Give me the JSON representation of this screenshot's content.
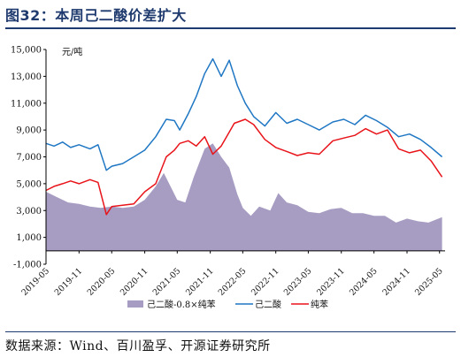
{
  "title": "图32：本周己二酸价差扩大",
  "source": "数据来源：Wind、百川盈孚、开源证券研究所",
  "chart_data": {
    "type": "line",
    "unit_label": "元/吨",
    "ylim": [
      -1000,
      15000
    ],
    "yticks": [
      "-1,000",
      "1,000",
      "3,000",
      "5,000",
      "7,000",
      "9,000",
      "11,000",
      "13,000",
      "15,000"
    ],
    "xticks": [
      "2019-05",
      "2019-11",
      "2020-05",
      "2020-11",
      "2021-05",
      "2021-11",
      "2022-05",
      "2022-11",
      "2023-05",
      "2023-11",
      "2024-05",
      "2024-11",
      "2025-05"
    ],
    "legend": [
      "己二酸-0.8×纯苯",
      "己二酸",
      "纯苯"
    ],
    "legend_position": "bottom",
    "colors": {
      "spread": "#a79cc2",
      "adipic": "#1f77c4",
      "benzene": "#e8141a"
    },
    "series": [
      {
        "name": "己二酸-0.8×纯苯",
        "style": "area",
        "points": [
          [
            "2019-05-01",
            4400
          ],
          [
            "2019-07-01",
            4000
          ],
          [
            "2019-09-01",
            3600
          ],
          [
            "2019-11-01",
            3500
          ],
          [
            "2020-01-01",
            3300
          ],
          [
            "2020-03-01",
            3200
          ],
          [
            "2020-05-01",
            3300
          ],
          [
            "2020-07-01",
            3200
          ],
          [
            "2020-09-01",
            3300
          ],
          [
            "2020-11-01",
            3800
          ],
          [
            "2021-01-01",
            4800
          ],
          [
            "2021-02-15",
            5800
          ],
          [
            "2021-04-01",
            4600
          ],
          [
            "2021-05-01",
            3800
          ],
          [
            "2021-06-15",
            3600
          ],
          [
            "2021-08-01",
            5500
          ],
          [
            "2021-10-01",
            7600
          ],
          [
            "2021-11-15",
            8000
          ],
          [
            "2022-01-01",
            7000
          ],
          [
            "2022-02-15",
            6200
          ],
          [
            "2022-04-01",
            4200
          ],
          [
            "2022-05-01",
            3200
          ],
          [
            "2022-06-15",
            2600
          ],
          [
            "2022-08-01",
            3300
          ],
          [
            "2022-10-01",
            3000
          ],
          [
            "2022-11-15",
            4300
          ],
          [
            "2023-01-01",
            3600
          ],
          [
            "2023-03-01",
            3400
          ],
          [
            "2023-05-01",
            2900
          ],
          [
            "2023-07-01",
            2800
          ],
          [
            "2023-09-01",
            3100
          ],
          [
            "2023-11-01",
            3200
          ],
          [
            "2024-01-01",
            2800
          ],
          [
            "2024-03-01",
            2800
          ],
          [
            "2024-05-01",
            2600
          ],
          [
            "2024-07-01",
            2600
          ],
          [
            "2024-09-01",
            2100
          ],
          [
            "2024-11-01",
            2400
          ],
          [
            "2025-01-01",
            2200
          ],
          [
            "2025-03-01",
            2100
          ],
          [
            "2025-05-15",
            2500
          ]
        ]
      },
      {
        "name": "己二酸",
        "style": "line",
        "points": [
          [
            "2019-05-01",
            8000
          ],
          [
            "2019-06-15",
            7800
          ],
          [
            "2019-08-01",
            8100
          ],
          [
            "2019-09-15",
            7700
          ],
          [
            "2019-11-01",
            7900
          ],
          [
            "2020-01-01",
            7600
          ],
          [
            "2020-02-15",
            7900
          ],
          [
            "2020-04-01",
            6000
          ],
          [
            "2020-05-01",
            6300
          ],
          [
            "2020-07-01",
            6500
          ],
          [
            "2020-09-01",
            7000
          ],
          [
            "2020-11-01",
            7500
          ],
          [
            "2021-01-01",
            8500
          ],
          [
            "2021-03-01",
            9800
          ],
          [
            "2021-04-15",
            9700
          ],
          [
            "2021-05-15",
            9000
          ],
          [
            "2021-07-01",
            10200
          ],
          [
            "2021-08-15",
            11500
          ],
          [
            "2021-10-01",
            13200
          ],
          [
            "2021-11-15",
            14300
          ],
          [
            "2022-01-01",
            13000
          ],
          [
            "2022-02-15",
            14200
          ],
          [
            "2022-04-01",
            12300
          ],
          [
            "2022-05-15",
            11000
          ],
          [
            "2022-07-01",
            10000
          ],
          [
            "2022-09-01",
            9300
          ],
          [
            "2022-11-01",
            10300
          ],
          [
            "2023-01-01",
            9500
          ],
          [
            "2023-03-01",
            9800
          ],
          [
            "2023-05-01",
            9400
          ],
          [
            "2023-07-01",
            9000
          ],
          [
            "2023-09-15",
            9600
          ],
          [
            "2023-11-15",
            9800
          ],
          [
            "2024-01-15",
            9400
          ],
          [
            "2024-03-15",
            10100
          ],
          [
            "2024-05-15",
            9700
          ],
          [
            "2024-07-15",
            9200
          ],
          [
            "2024-09-15",
            8500
          ],
          [
            "2024-11-15",
            8700
          ],
          [
            "2025-01-15",
            8300
          ],
          [
            "2025-03-15",
            7700
          ],
          [
            "2025-05-15",
            7000
          ]
        ]
      },
      {
        "name": "纯苯",
        "style": "line",
        "points": [
          [
            "2019-05-01",
            4500
          ],
          [
            "2019-06-15",
            4800
          ],
          [
            "2019-08-01",
            5000
          ],
          [
            "2019-09-15",
            5200
          ],
          [
            "2019-11-01",
            5000
          ],
          [
            "2020-01-01",
            5300
          ],
          [
            "2020-02-15",
            5100
          ],
          [
            "2020-04-01",
            2700
          ],
          [
            "2020-05-01",
            3300
          ],
          [
            "2020-07-01",
            3400
          ],
          [
            "2020-09-01",
            3500
          ],
          [
            "2020-11-01",
            4400
          ],
          [
            "2021-01-01",
            5000
          ],
          [
            "2021-03-01",
            7000
          ],
          [
            "2021-04-15",
            7500
          ],
          [
            "2021-05-15",
            8000
          ],
          [
            "2021-07-01",
            8200
          ],
          [
            "2021-08-15",
            7800
          ],
          [
            "2021-10-01",
            8500
          ],
          [
            "2021-11-15",
            7200
          ],
          [
            "2022-01-01",
            7800
          ],
          [
            "2022-03-15",
            9500
          ],
          [
            "2022-05-15",
            9800
          ],
          [
            "2022-07-01",
            9400
          ],
          [
            "2022-09-01",
            8300
          ],
          [
            "2022-11-01",
            7700
          ],
          [
            "2023-01-01",
            7400
          ],
          [
            "2023-03-01",
            7100
          ],
          [
            "2023-05-01",
            7300
          ],
          [
            "2023-07-01",
            7200
          ],
          [
            "2023-09-15",
            8200
          ],
          [
            "2023-11-15",
            8400
          ],
          [
            "2024-01-15",
            8600
          ],
          [
            "2024-03-15",
            9100
          ],
          [
            "2024-05-15",
            8700
          ],
          [
            "2024-07-15",
            9000
          ],
          [
            "2024-09-15",
            7600
          ],
          [
            "2024-11-15",
            7300
          ],
          [
            "2025-01-15",
            7500
          ],
          [
            "2025-03-15",
            6700
          ],
          [
            "2025-05-15",
            5500
          ]
        ]
      }
    ]
  }
}
